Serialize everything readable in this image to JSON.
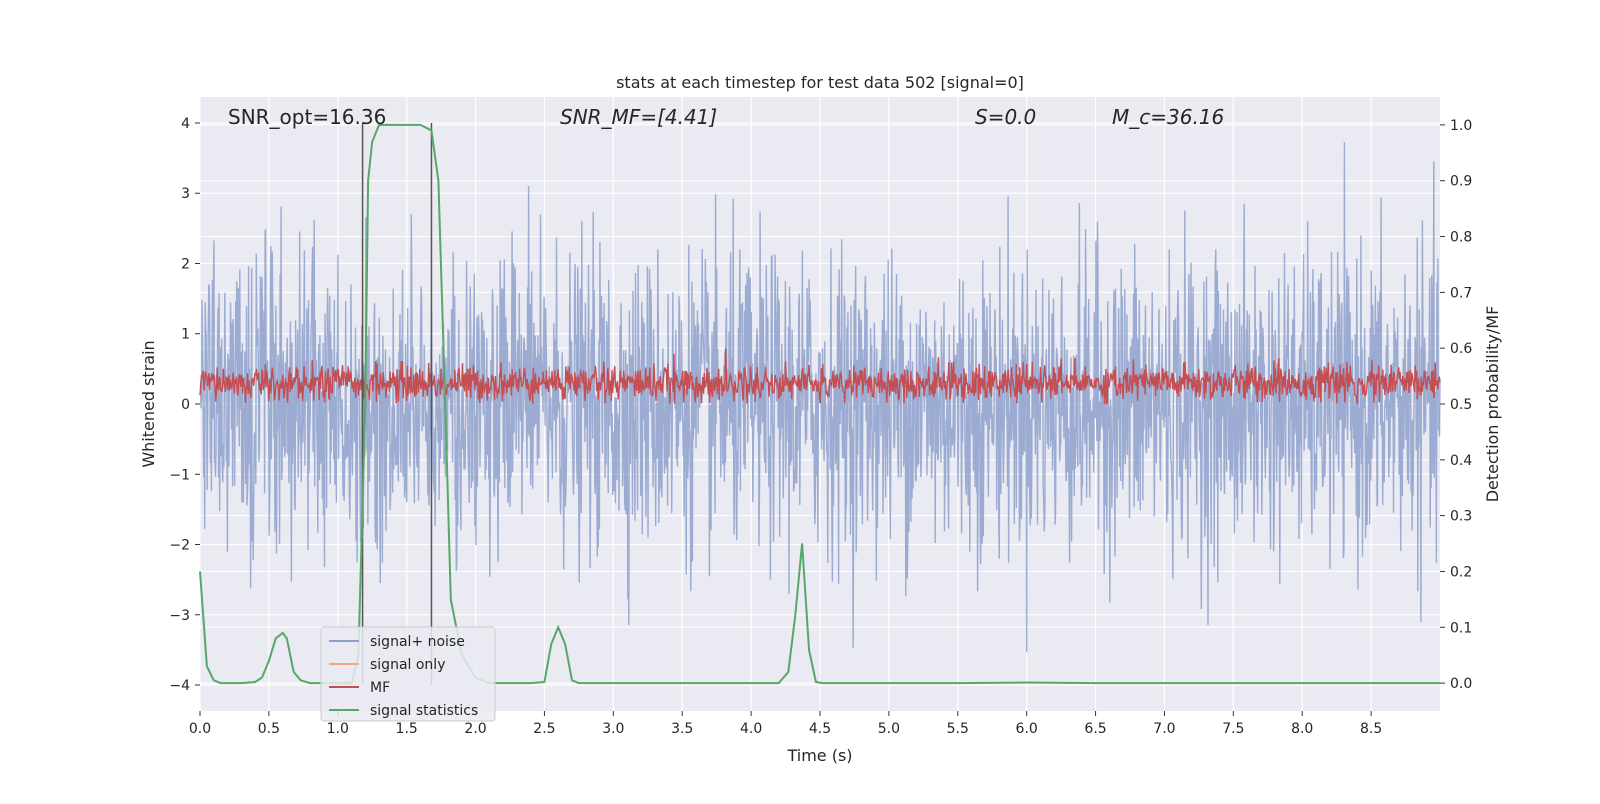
{
  "chart_data": {
    "type": "line",
    "title": "stats at each timestep for test data 502 [signal=0]",
    "xlabel": "Time (s)",
    "ylabel_left": "Whitened strain",
    "ylabel_right": "Detection probability/MF",
    "xlim": [
      0.0,
      9.0
    ],
    "ylim_left": [
      -4.37,
      4.37
    ],
    "ylim_right": [
      -0.05,
      1.05
    ],
    "x_ticks": [
      "0.0",
      "0.5",
      "1.0",
      "1.5",
      "2.0",
      "2.5",
      "3.0",
      "3.5",
      "4.0",
      "4.5",
      "5.0",
      "5.5",
      "6.0",
      "6.5",
      "7.0",
      "7.5",
      "8.0",
      "8.5"
    ],
    "y_left_ticks": [
      "4",
      "3",
      "2",
      "1",
      "0",
      "−1",
      "−2",
      "−3",
      "−4"
    ],
    "y_right_ticks": [
      "1.0",
      "0.9",
      "0.8",
      "0.7",
      "0.6",
      "0.5",
      "0.4",
      "0.3",
      "0.2",
      "0.1",
      "0.0"
    ],
    "grid": true,
    "legend": {
      "placement": "lower-left",
      "entries": [
        {
          "name": "signal+ noise",
          "color": "#8da0cb"
        },
        {
          "name": "signal only",
          "color": "#f4a582"
        },
        {
          "name": "MF",
          "color": "#c44e52"
        },
        {
          "name": "signal statistics",
          "color": "#55a868"
        }
      ]
    },
    "annotations": [
      {
        "key": "snr_opt",
        "text": "SNR_opt=16.36"
      },
      {
        "key": "snr_mf",
        "text": "SNR_MF=[4.41]"
      },
      {
        "key": "s",
        "text": "S=0.0"
      },
      {
        "key": "mc",
        "text": "M_c=36.16"
      }
    ],
    "vertical_markers_x": [
      1.18,
      1.68
    ],
    "series": [
      {
        "name": "signal+ noise",
        "axis": "left",
        "color": "#8da0cb",
        "x_range": [
          0.0,
          9.0
        ],
        "amplitude_range": [
          -4.0,
          4.0
        ],
        "typical_peak": 2.3
      },
      {
        "name": "MF",
        "axis": "left",
        "color": "#c44e52",
        "x_range": [
          0.0,
          9.0
        ],
        "range": [
          0.0,
          1.0
        ],
        "typical_value": 0.3
      },
      {
        "name": "signal statistics",
        "axis": "right",
        "color": "#55a868",
        "x": [
          0.0,
          0.05,
          0.1,
          0.15,
          0.2,
          0.3,
          0.4,
          0.45,
          0.5,
          0.55,
          0.6,
          0.63,
          0.68,
          0.73,
          0.8,
          0.9,
          1.0,
          1.1,
          1.15,
          1.2,
          1.22,
          1.25,
          1.3,
          1.4,
          1.5,
          1.6,
          1.68,
          1.73,
          1.78,
          1.82,
          1.9,
          2.0,
          2.1,
          2.2,
          2.3,
          2.4,
          2.5,
          2.55,
          2.6,
          2.65,
          2.7,
          2.75,
          2.8,
          3.0,
          3.5,
          4.0,
          4.2,
          4.27,
          4.32,
          4.37,
          4.42,
          4.47,
          4.52,
          5.0,
          5.5,
          6.0,
          6.5,
          7.0,
          7.5,
          8.0,
          8.5,
          9.0
        ],
        "values": [
          0.2,
          0.03,
          0.005,
          0.0,
          0.0,
          0.0,
          0.002,
          0.01,
          0.04,
          0.08,
          0.09,
          0.08,
          0.02,
          0.005,
          0.0,
          0.0,
          0.0,
          0.0,
          0.05,
          0.5,
          0.9,
          0.97,
          1.0,
          1.0,
          1.0,
          1.0,
          0.99,
          0.9,
          0.5,
          0.15,
          0.05,
          0.01,
          0.0,
          0.0,
          0.0,
          0.0,
          0.002,
          0.07,
          0.1,
          0.07,
          0.005,
          0.0,
          0.0,
          0.0,
          0.0,
          0.0,
          0.0,
          0.02,
          0.12,
          0.25,
          0.06,
          0.002,
          0.0,
          0.0,
          0.0,
          0.001,
          0.0,
          0.0,
          0.0,
          0.0,
          0.0,
          0.0
        ]
      }
    ]
  }
}
